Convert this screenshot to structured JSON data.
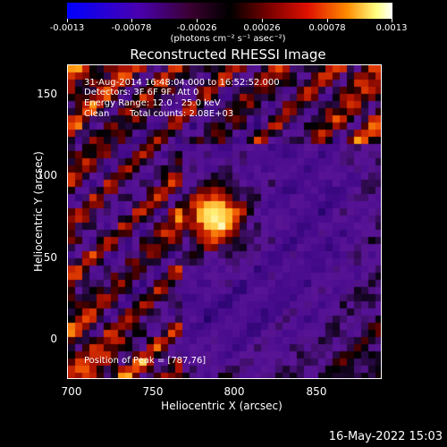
{
  "colorbar": {
    "tick_labels": [
      "-0.0013",
      "-0.00078",
      "-0.00026",
      "0.00026",
      "0.00078",
      "0.0013"
    ],
    "units": "(photons cm⁻² s⁻¹ asec⁻²)"
  },
  "title": "Reconstructed RHESSI Image",
  "info": {
    "time_range": "31-Aug-2014 16:48:04.000 to 16:52:52.000",
    "detectors": "Detectors: 3F 6F 9F, Att 0",
    "energy_range": "Energy Range: 12.0 - 25.0 keV",
    "algorithm": "Clean",
    "total_counts": "Total counts: 2.08E+03",
    "peak_position": "Position of Peak = [787,76]"
  },
  "axes": {
    "x_ticks": [
      "700",
      "750",
      "800",
      "850"
    ],
    "y_ticks": [
      "150",
      "100",
      "50",
      "0"
    ],
    "xlabel": "Heliocentric X (arcsec)",
    "ylabel": "Heliocentric Y (arcsec)"
  },
  "footer_timestamp": "16-May-2022 15:03",
  "image": {
    "peak_x": 787,
    "peak_y": 76,
    "x_range": [
      697,
      890
    ],
    "y_range": [
      -24,
      169
    ]
  }
}
